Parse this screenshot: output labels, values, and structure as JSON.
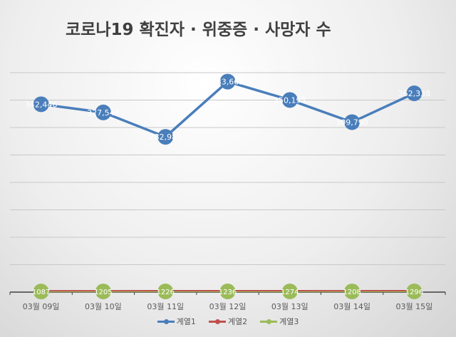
{
  "chart_data": {
    "type": "line",
    "title": "코로나19 확진자 · 위중증 · 사망자 수",
    "categories": [
      "03월 09일",
      "03월 10일",
      "03월 11일",
      "03월 12일",
      "03월 13일",
      "03월 14일",
      "03월 15일"
    ],
    "ylim": [
      0,
      400000
    ],
    "grid": true,
    "legend": "bottom",
    "series": [
      {
        "name": "계열1",
        "color": "#4a7ebb",
        "values": [
          342446,
          327549,
          282987,
          383665,
          350195,
          309790,
          362338
        ],
        "labels": [
          "342,446",
          "327,549",
          "282,987",
          "383,665",
          "350,195",
          "309,790",
          "362,338"
        ]
      },
      {
        "name": "계열2",
        "color": "#c0504d",
        "values": [
          1087,
          1205,
          1226,
          1236,
          1274,
          1208,
          1296
        ],
        "labels": [
          "1087",
          "1205",
          "1226",
          "1236",
          "1274",
          "1208",
          "1296"
        ]
      },
      {
        "name": "계열3",
        "color": "#9bbb59",
        "values": [
          1087,
          1205,
          1226,
          1236,
          1274,
          1208,
          1296
        ],
        "labels": [
          "1087",
          "1205",
          "1226",
          "1236",
          "1274",
          "1208",
          "1296"
        ]
      }
    ]
  }
}
